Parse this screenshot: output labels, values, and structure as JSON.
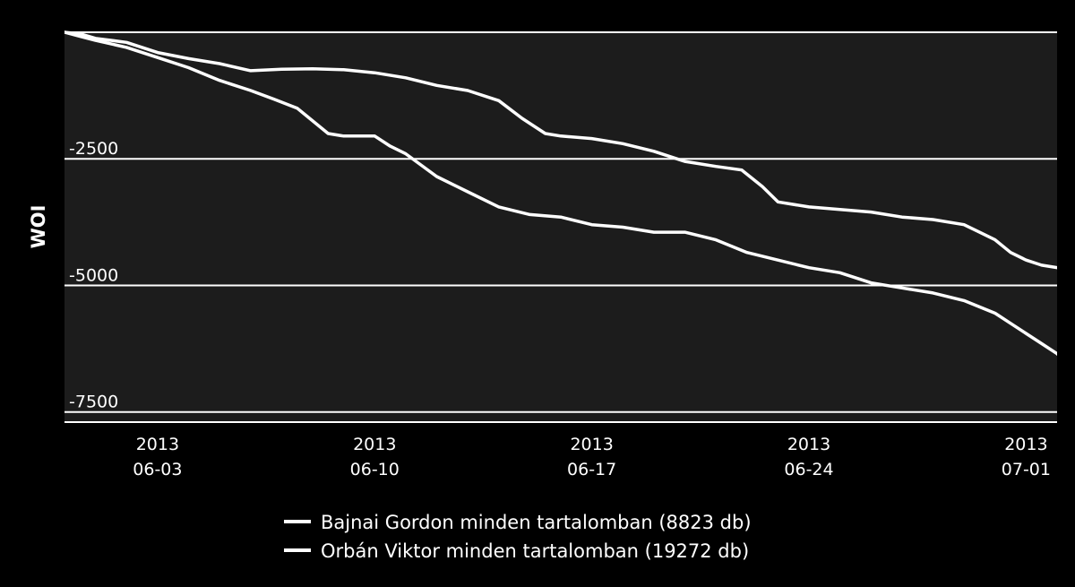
{
  "chart_data": {
    "type": "line",
    "ylabel": "WOI",
    "xlabel": "",
    "ylim": [
      -7700,
      0
    ],
    "grid": true,
    "legend_position": "bottom-center",
    "yticks": [
      {
        "value": -2500,
        "label": "-2500"
      },
      {
        "value": -5000,
        "label": "-5000"
      },
      {
        "value": -7500,
        "label": "-7500"
      }
    ],
    "xticks": [
      {
        "date": "2013-06-03",
        "year": "2013",
        "day": "06-03"
      },
      {
        "date": "2013-06-10",
        "year": "2013",
        "day": "06-10"
      },
      {
        "date": "2013-06-17",
        "year": "2013",
        "day": "06-17"
      },
      {
        "date": "2013-06-24",
        "year": "2013",
        "day": "06-24"
      },
      {
        "date": "2013-07-01",
        "year": "2013",
        "day": "07-01"
      }
    ],
    "xlim": [
      "2013-05-31T00:00",
      "2013-07-02T00:00"
    ],
    "colors": {
      "background": "#000000",
      "plot_background": "#1c1c1c",
      "line": "#ffffff",
      "grid": "#ffffff"
    },
    "series": [
      {
        "name": "Bajnai Gordon minden tartalomban (8823 db)",
        "points": [
          [
            "2013-05-31T00:00",
            0
          ],
          [
            "2013-05-31T12:00",
            -30
          ],
          [
            "2013-06-01T00:00",
            -120
          ],
          [
            "2013-06-02T00:00",
            -200
          ],
          [
            "2013-06-03T00:00",
            -400
          ],
          [
            "2013-06-04T00:00",
            -520
          ],
          [
            "2013-06-05T00:00",
            -620
          ],
          [
            "2013-06-06T00:00",
            -760
          ],
          [
            "2013-06-07T00:00",
            -730
          ],
          [
            "2013-06-08T00:00",
            -720
          ],
          [
            "2013-06-09T00:00",
            -740
          ],
          [
            "2013-06-10T00:00",
            -800
          ],
          [
            "2013-06-11T00:00",
            -900
          ],
          [
            "2013-06-12T00:00",
            -1050
          ],
          [
            "2013-06-13T00:00",
            -1150
          ],
          [
            "2013-06-14T00:00",
            -1350
          ],
          [
            "2013-06-14T18:00",
            -1700
          ],
          [
            "2013-06-15T12:00",
            -2000
          ],
          [
            "2013-06-16T00:00",
            -2050
          ],
          [
            "2013-06-17T00:00",
            -2100
          ],
          [
            "2013-06-18T00:00",
            -2200
          ],
          [
            "2013-06-19T00:00",
            -2350
          ],
          [
            "2013-06-20T00:00",
            -2550
          ],
          [
            "2013-06-21T00:00",
            -2650
          ],
          [
            "2013-06-21T20:00",
            -2720
          ],
          [
            "2013-06-22T12:00",
            -3050
          ],
          [
            "2013-06-23T00:00",
            -3350
          ],
          [
            "2013-06-24T00:00",
            -3450
          ],
          [
            "2013-06-25T00:00",
            -3500
          ],
          [
            "2013-06-26T00:00",
            -3550
          ],
          [
            "2013-06-27T00:00",
            -3650
          ],
          [
            "2013-06-28T00:00",
            -3700
          ],
          [
            "2013-06-29T00:00",
            -3800
          ],
          [
            "2013-06-29T12:00",
            -3950
          ],
          [
            "2013-06-30T00:00",
            -4100
          ],
          [
            "2013-06-30T12:00",
            -4350
          ],
          [
            "2013-07-01T00:00",
            -4500
          ],
          [
            "2013-07-01T12:00",
            -4600
          ],
          [
            "2013-07-02T00:00",
            -4650
          ]
        ]
      },
      {
        "name": "Orbán Viktor minden tartalomban (19272 db)",
        "points": [
          [
            "2013-05-31T00:00",
            0
          ],
          [
            "2013-05-31T12:00",
            -80
          ],
          [
            "2013-06-01T00:00",
            -160
          ],
          [
            "2013-06-02T00:00",
            -300
          ],
          [
            "2013-06-03T00:00",
            -500
          ],
          [
            "2013-06-04T00:00",
            -700
          ],
          [
            "2013-06-05T00:00",
            -950
          ],
          [
            "2013-06-06T00:00",
            -1150
          ],
          [
            "2013-06-06T18:00",
            -1320
          ],
          [
            "2013-06-07T12:00",
            -1500
          ],
          [
            "2013-06-08T12:00",
            -2000
          ],
          [
            "2013-06-09T00:00",
            -2050
          ],
          [
            "2013-06-10T00:00",
            -2050
          ],
          [
            "2013-06-10T12:00",
            -2250
          ],
          [
            "2013-06-11T00:00",
            -2400
          ],
          [
            "2013-06-12T00:00",
            -2850
          ],
          [
            "2013-06-13T00:00",
            -3150
          ],
          [
            "2013-06-14T00:00",
            -3450
          ],
          [
            "2013-06-15T00:00",
            -3600
          ],
          [
            "2013-06-16T00:00",
            -3650
          ],
          [
            "2013-06-17T00:00",
            -3800
          ],
          [
            "2013-06-18T00:00",
            -3850
          ],
          [
            "2013-06-19T00:00",
            -3950
          ],
          [
            "2013-06-20T00:00",
            -3950
          ],
          [
            "2013-06-21T00:00",
            -4100
          ],
          [
            "2013-06-22T00:00",
            -4350
          ],
          [
            "2013-06-23T00:00",
            -4500
          ],
          [
            "2013-06-24T00:00",
            -4650
          ],
          [
            "2013-06-25T00:00",
            -4750
          ],
          [
            "2013-06-26T00:00",
            -4950
          ],
          [
            "2013-06-27T00:00",
            -5050
          ],
          [
            "2013-06-28T00:00",
            -5150
          ],
          [
            "2013-06-29T00:00",
            -5300
          ],
          [
            "2013-06-30T00:00",
            -5550
          ],
          [
            "2013-06-30T12:00",
            -5750
          ],
          [
            "2013-07-01T00:00",
            -5950
          ],
          [
            "2013-07-01T12:00",
            -6150
          ],
          [
            "2013-07-02T00:00",
            -6350
          ],
          [
            "2013-07-02T12:00",
            -6650
          ],
          [
            "2013-07-03T00:00",
            -6950
          ],
          [
            "2013-07-03T12:00",
            -7150
          ]
        ]
      }
    ]
  }
}
